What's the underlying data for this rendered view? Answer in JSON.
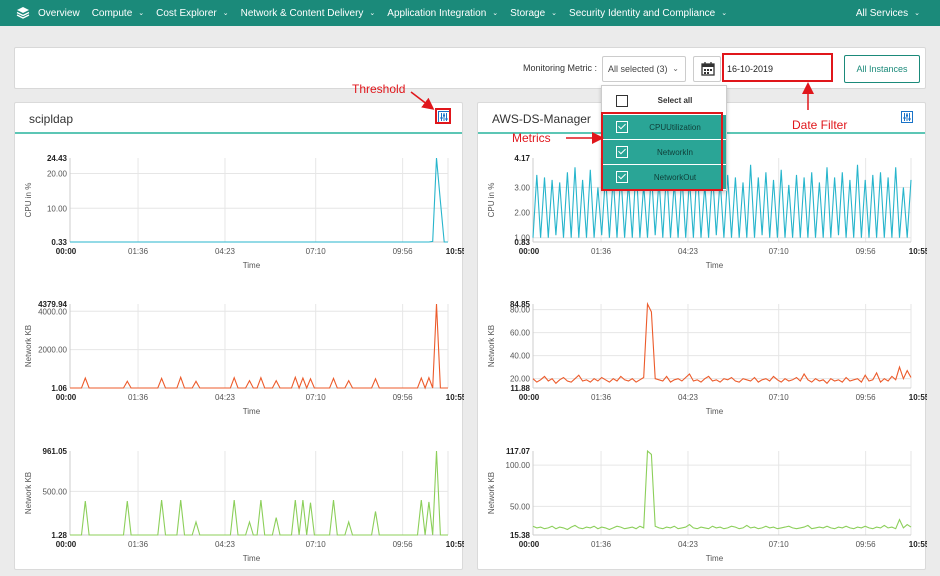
{
  "nav": {
    "items": [
      {
        "label": "Overview",
        "chevron": false
      },
      {
        "label": "Compute",
        "chevron": true
      },
      {
        "label": "Cost Explorer",
        "chevron": true
      },
      {
        "label": "Network & Content Delivery",
        "chevron": true
      },
      {
        "label": "Application Integration",
        "chevron": true
      },
      {
        "label": "Storage",
        "chevron": true
      },
      {
        "label": "Security Identity and Compliance",
        "chevron": true
      }
    ],
    "right": "All Services",
    "chevron_glyph": "⌄"
  },
  "toolbar": {
    "metric_label": "Monitoring Metric :",
    "metric_value": "All selected (3)",
    "date_value": "16-10-2019",
    "all_instances": "All Instances"
  },
  "dropdown": {
    "select_all": "Select all",
    "options": [
      "CPUUtilization",
      "NetworkIn",
      "NetworkOut"
    ]
  },
  "annotations": {
    "threshold": "Threshold",
    "metrics": "Metrics",
    "date_filter": "Date Filter"
  },
  "colors": {
    "accent": "#1b8a7a",
    "cpu": "#27b5cc",
    "netin": "#ec5b2b",
    "netout": "#8ccf5a",
    "annotation": "#e0161b"
  },
  "panels": [
    {
      "title": "scipldap"
    },
    {
      "title": "AWS-DS-Manager"
    }
  ],
  "chart_data": [
    {
      "type": "line",
      "panel": "scipldap",
      "metric": "CPUUtilization",
      "xlabel": "Time",
      "ylabel": "CPU in %",
      "x_ticks": [
        "00:00",
        "01:36",
        "04:23",
        "07:10",
        "09:56",
        "10:55"
      ],
      "y_min_label": "0.33",
      "y_max_label": "24.43",
      "y_ticks": [
        "20.00",
        "10.00"
      ],
      "ylim": [
        0.33,
        24.43
      ],
      "series": [
        {
          "values": [
            0.33,
            0.33,
            0.33,
            0.33,
            0.33,
            0.33,
            0.33,
            0.33,
            0.33,
            0.33,
            0.33,
            0.33,
            0.33,
            0.33,
            0.33,
            0.33,
            0.33,
            0.33,
            0.33,
            0.33,
            0.33,
            0.33,
            0.33,
            0.33,
            0.33,
            0.33,
            0.33,
            0.33,
            0.33,
            0.33,
            0.33,
            0.33,
            0.33,
            0.33,
            0.33,
            0.33,
            0.33,
            0.33,
            0.33,
            0.33,
            0.33,
            0.33,
            0.33,
            0.33,
            0.33,
            0.33,
            0.33,
            0.33,
            0.33,
            0.33,
            0.33,
            0.33,
            0.33,
            0.33,
            0.33,
            0.33,
            0.33,
            0.33,
            0.33,
            0.33,
            0.33,
            0.33,
            0.33,
            0.33,
            0.33,
            0.33,
            0.33,
            0.33,
            0.33,
            0.33,
            0.33,
            0.33,
            0.33,
            0.33,
            0.33,
            0.33,
            0.33,
            0.33,
            0.33,
            0.33,
            0.33,
            0.33,
            0.33,
            0.33,
            0.33,
            0.33,
            0.33,
            0.33,
            0.33,
            0.33,
            0.33,
            0.33,
            0.33,
            0.33,
            0.33,
            0.5,
            24.43,
            12,
            0.33,
            0.33
          ]
        }
      ]
    },
    {
      "type": "line",
      "panel": "scipldap",
      "metric": "NetworkIn",
      "xlabel": "Time",
      "ylabel": "Network KB",
      "x_ticks": [
        "00:00",
        "01:36",
        "04:23",
        "07:10",
        "09:56",
        "10:55"
      ],
      "y_min_label": "1.06",
      "y_max_label": "4379.94",
      "y_ticks": [
        "4000.00",
        "2000.00"
      ],
      "ylim": [
        1.06,
        4379.94
      ],
      "series": [
        {
          "values": [
            1.06,
            1.06,
            1.06,
            1.06,
            520,
            1.06,
            1.06,
            1.06,
            1.06,
            1.06,
            1.06,
            1.06,
            1.06,
            1.06,
            1.06,
            350,
            1.06,
            1.06,
            1.06,
            1.06,
            1.06,
            1.06,
            1.06,
            1.06,
            500,
            1.06,
            1.06,
            1.06,
            1.06,
            560,
            1.06,
            1.06,
            1.06,
            350,
            1.06,
            1.06,
            1.06,
            1.06,
            1.06,
            1.06,
            1.06,
            1.06,
            1.06,
            540,
            1.06,
            1.06,
            1.06,
            380,
            1.06,
            1.06,
            540,
            1.06,
            1.06,
            1.06,
            380,
            1.06,
            1.06,
            1.06,
            1.06,
            560,
            1.06,
            520,
            1.06,
            480,
            1.06,
            1.06,
            1.06,
            1.06,
            1.06,
            500,
            1.06,
            1.06,
            1.06,
            380,
            1.06,
            1.06,
            1.06,
            1.06,
            1.06,
            1.06,
            480,
            1.06,
            1.06,
            1.06,
            1.06,
            1.06,
            1.06,
            1.06,
            1.06,
            1.06,
            1.06,
            1.06,
            520,
            1.06,
            540,
            1.06,
            4379.94,
            1.06,
            1.06,
            1.06
          ]
        }
      ]
    },
    {
      "type": "line",
      "panel": "scipldap",
      "metric": "NetworkOut",
      "xlabel": "Time",
      "ylabel": "Network KB",
      "x_ticks": [
        "00:00",
        "01:36",
        "04:23",
        "07:10",
        "09:56",
        "10:55"
      ],
      "y_min_label": "1.28",
      "y_max_label": "961.05",
      "y_ticks": [
        "500.00"
      ],
      "ylim": [
        1.28,
        961.05
      ],
      "series": [
        {
          "values": [
            1.28,
            1.28,
            1.28,
            1.28,
            390,
            1.28,
            1.28,
            1.28,
            1.28,
            1.28,
            1.28,
            1.28,
            1.28,
            1.28,
            1.28,
            390,
            1.28,
            1.28,
            1.28,
            1.28,
            1.28,
            1.28,
            1.28,
            1.28,
            400,
            1.28,
            1.28,
            1.28,
            1.28,
            400,
            1.28,
            1.28,
            1.28,
            150,
            1.28,
            1.28,
            1.28,
            1.28,
            1.28,
            1.28,
            1.28,
            1.28,
            1.28,
            400,
            1.28,
            1.28,
            1.28,
            150,
            1.28,
            1.28,
            400,
            1.28,
            1.28,
            1.28,
            200,
            1.28,
            1.28,
            1.28,
            1.28,
            400,
            1.28,
            400,
            1.28,
            370,
            1.28,
            1.28,
            1.28,
            1.28,
            1.28,
            400,
            1.28,
            1.28,
            1.28,
            150,
            1.28,
            1.28,
            1.28,
            1.28,
            1.28,
            1.28,
            270,
            1.28,
            1.28,
            1.28,
            1.28,
            1.28,
            1.28,
            1.28,
            1.28,
            1.28,
            1.28,
            1.28,
            400,
            1.28,
            380,
            1.28,
            961.05,
            1.28,
            1.28,
            1.28
          ]
        }
      ]
    },
    {
      "type": "line",
      "panel": "AWS-DS-Manager",
      "metric": "CPUUtilization",
      "xlabel": "Time",
      "ylabel": "CPU in %",
      "x_ticks": [
        "00:00",
        "01:36",
        "04:23",
        "07:10",
        "09:56",
        "10:55"
      ],
      "y_min_label": "0.83",
      "y_max_label": "4.17",
      "y_ticks": [
        "3.00",
        "2.00",
        "1.00"
      ],
      "ylim": [
        0.83,
        4.17
      ],
      "series": [
        {
          "values": [
            1.0,
            3.5,
            1.0,
            3.4,
            1.0,
            3.3,
            1.1,
            3.2,
            1.0,
            3.6,
            1.0,
            3.8,
            1.0,
            3.3,
            1.0,
            3.7,
            1.0,
            3.0,
            1.1,
            3.5,
            1.0,
            3.4,
            1.0,
            3.6,
            1.0,
            3.2,
            1.0,
            3.9,
            1.0,
            3.1,
            1.0,
            3.6,
            1.1,
            3.3,
            1.0,
            3.7,
            1.0,
            3.2,
            1.0,
            3.5,
            1.0,
            3.3,
            1.0,
            3.9,
            1.0,
            3.1,
            1.0,
            3.6,
            1.1,
            3.3,
            1.0,
            3.5,
            1.0,
            3.4,
            1.0,
            3.2,
            1.0,
            3.9,
            1.0,
            3.4,
            1.1,
            3.6,
            1.0,
            3.3,
            1.0,
            3.7,
            1.0,
            3.1,
            1.0,
            3.5,
            1.0,
            3.4,
            1.0,
            3.6,
            1.0,
            3.2,
            1.0,
            3.8,
            1.0,
            3.4,
            1.1,
            3.6,
            1.0,
            3.3,
            1.0,
            3.9,
            1.0,
            3.3,
            1.0,
            3.5,
            1.0,
            3.6,
            1.0,
            3.4,
            1.0,
            3.8,
            1.0,
            3.0,
            1.0,
            3.3
          ]
        }
      ]
    },
    {
      "type": "line",
      "panel": "AWS-DS-Manager",
      "metric": "NetworkIn",
      "xlabel": "Time",
      "ylabel": "Network KB",
      "x_ticks": [
        "00:00",
        "01:36",
        "04:23",
        "07:10",
        "09:56",
        "10:55"
      ],
      "y_min_label": "11.88",
      "y_max_label": "84.85",
      "y_ticks": [
        "80.00",
        "60.00",
        "40.00",
        "20.00"
      ],
      "ylim": [
        11.88,
        84.85
      ],
      "series": [
        {
          "values": [
            20,
            17,
            19,
            22,
            18,
            20,
            16,
            19,
            21,
            18,
            17,
            20,
            23,
            18,
            19,
            17,
            20,
            18,
            21,
            19,
            17,
            20,
            18,
            22,
            19,
            18,
            20,
            17,
            19,
            21,
            84.85,
            78,
            20,
            19,
            18,
            22,
            17,
            19,
            20,
            18,
            21,
            24,
            18,
            19,
            17,
            20,
            22,
            18,
            19,
            17,
            20,
            19,
            21,
            18,
            17,
            20,
            19,
            18,
            21,
            17,
            19,
            20,
            18,
            22,
            19,
            17,
            20,
            18,
            19,
            21,
            18,
            24,
            19,
            17,
            20,
            18,
            19,
            16,
            20,
            18,
            19,
            17,
            21,
            18,
            19,
            20,
            17,
            23,
            18,
            19,
            25,
            17,
            20,
            18,
            22,
            19,
            30,
            20,
            27,
            21
          ]
        }
      ]
    },
    {
      "type": "line",
      "panel": "AWS-DS-Manager",
      "metric": "NetworkOut",
      "xlabel": "Time",
      "ylabel": "Network KB",
      "x_ticks": [
        "00:00",
        "01:36",
        "04:23",
        "07:10",
        "09:56",
        "10:55"
      ],
      "y_min_label": "15.38",
      "y_max_label": "117.07",
      "y_ticks": [
        "100.00",
        "50.00"
      ],
      "ylim": [
        15.38,
        117.07
      ],
      "series": [
        {
          "values": [
            26,
            24,
            25,
            23,
            24,
            26,
            23,
            25,
            24,
            22,
            25,
            27,
            24,
            23,
            25,
            24,
            26,
            23,
            25,
            24,
            22,
            24,
            26,
            25,
            23,
            24,
            25,
            23,
            26,
            24,
            117.07,
            113,
            26,
            24,
            23,
            25,
            24,
            26,
            23,
            24,
            25,
            28,
            24,
            23,
            25,
            24,
            23,
            26,
            24,
            25,
            23,
            24,
            26,
            25,
            23,
            24,
            27,
            24,
            25,
            23,
            24,
            26,
            24,
            25,
            23,
            24,
            25,
            26,
            24,
            23,
            24,
            25,
            27,
            23,
            24,
            25,
            24,
            26,
            24,
            23,
            25,
            24,
            26,
            24,
            23,
            25,
            24,
            26,
            24,
            23,
            25,
            24,
            27,
            24,
            25,
            23,
            34,
            24,
            28,
            25
          ]
        }
      ]
    }
  ]
}
